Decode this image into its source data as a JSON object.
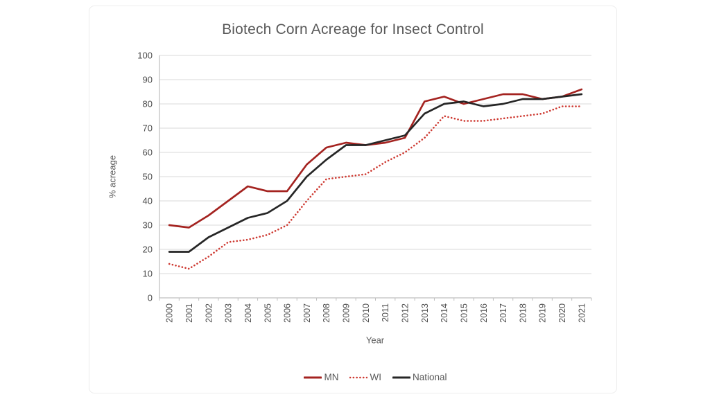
{
  "chart_data": {
    "type": "line",
    "title": "Biotech Corn Acreage for Insect Control",
    "xlabel": "Year",
    "ylabel": "% acreage",
    "ylim": [
      0,
      100
    ],
    "yticks": [
      0,
      10,
      20,
      30,
      40,
      50,
      60,
      70,
      80,
      90,
      100
    ],
    "grid": true,
    "legend_position": "bottom",
    "categories": [
      "2000",
      "2001",
      "2002",
      "2003",
      "2004",
      "2005",
      "2006",
      "2007",
      "2008",
      "2009",
      "2010",
      "2011",
      "2012",
      "2013",
      "2014",
      "2015",
      "2016",
      "2017",
      "2018",
      "2019",
      "2020",
      "2021"
    ],
    "series": [
      {
        "name": "MN",
        "color": "#a42320",
        "style": "solid",
        "values": [
          30,
          29,
          34,
          40,
          46,
          44,
          44,
          55,
          62,
          64,
          63,
          64,
          66,
          81,
          83,
          80,
          82,
          84,
          84,
          82,
          83,
          86
        ]
      },
      {
        "name": "WI",
        "color": "#ce3a32",
        "style": "dotted",
        "values": [
          14,
          12,
          17,
          23,
          24,
          26,
          30,
          40,
          49,
          50,
          51,
          56,
          60,
          66,
          75,
          73,
          73,
          74,
          75,
          76,
          79,
          79
        ]
      },
      {
        "name": "National",
        "color": "#262626",
        "style": "solid",
        "values": [
          19,
          19,
          25,
          29,
          33,
          35,
          40,
          50,
          57,
          63,
          63,
          65,
          67,
          76,
          80,
          81,
          79,
          80,
          82,
          82,
          83,
          84
        ]
      }
    ],
    "colors": {
      "gridline": "#d9d9d9",
      "axis_line": "#bfbfbf",
      "tick_label": "#4d4d4d",
      "title_text": "#595959"
    }
  }
}
